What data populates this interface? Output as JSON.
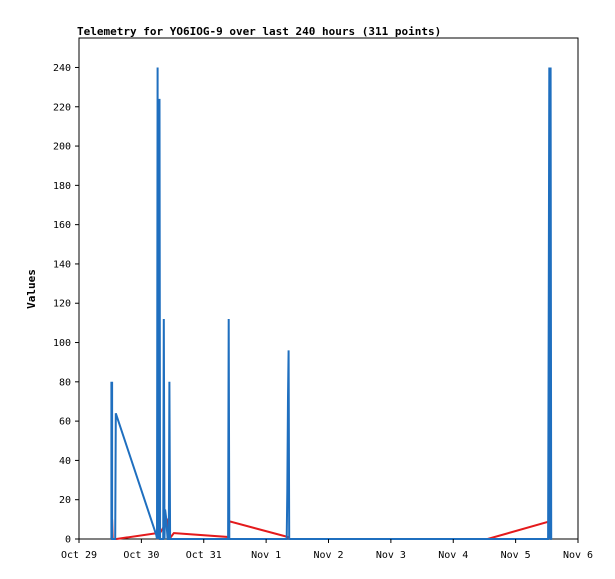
{
  "chart_data": {
    "type": "line",
    "title": "Telemetry for YO6IOG-9 over last 240 hours (311 points)",
    "xlabel": "",
    "ylabel": "Values",
    "ylim": [
      0,
      255
    ],
    "yticks": [
      0,
      20,
      40,
      60,
      80,
      100,
      120,
      140,
      160,
      180,
      200,
      220,
      240
    ],
    "xlim": [
      0,
      8
    ],
    "xticks": [
      {
        "label": "Oct 29",
        "value": 0
      },
      {
        "label": "Oct 30",
        "value": 1
      },
      {
        "label": "Oct 31",
        "value": 2
      },
      {
        "label": "Nov 1",
        "value": 3
      },
      {
        "label": "Nov 2",
        "value": 4
      },
      {
        "label": "Nov 3",
        "value": 5
      },
      {
        "label": "Nov 4",
        "value": 6
      },
      {
        "label": "Nov 5",
        "value": 7
      },
      {
        "label": "Nov 6",
        "value": 8
      }
    ],
    "grid": false,
    "series": [
      {
        "color": "#e41a1c",
        "x": [
          0.52,
          0.53,
          0.54,
          0.56,
          0.6,
          1.25,
          1.26,
          1.27,
          1.28,
          1.43,
          1.44,
          1.45,
          1.52,
          1.53,
          2.4,
          2.41,
          3.35,
          3.37,
          4.0,
          5.0,
          6.0,
          6.55,
          7.55,
          7.56
        ],
        "y": [
          0,
          10,
          0,
          0,
          0,
          3,
          0,
          3,
          2,
          10,
          0,
          0,
          3,
          3,
          1,
          9,
          1,
          0,
          0,
          0,
          0,
          0,
          9,
          0
        ]
      },
      {
        "color": "#1f6fbf",
        "x": [
          0.52,
          0.52,
          0.53,
          0.53,
          0.53,
          0.54,
          0.54,
          0.58,
          0.59,
          1.24,
          1.25,
          1.26,
          1.26,
          1.27,
          1.28,
          1.29,
          1.3,
          1.31,
          1.32,
          1.33,
          1.34,
          1.35,
          1.36,
          1.37,
          1.38,
          1.4,
          1.41,
          1.42,
          1.43,
          1.44,
          1.45,
          1.46,
          1.47,
          1.48,
          1.5,
          1.51,
          1.52,
          2.39,
          2.4,
          2.41,
          2.42,
          3.33,
          3.34,
          3.35,
          3.36,
          3.37,
          4.0,
          5.0,
          6.0,
          7.0,
          7.52,
          7.53,
          7.54,
          7.55,
          7.56,
          7.57,
          7.58
        ],
        "y": [
          0,
          80,
          0,
          80,
          0,
          0,
          0,
          0,
          64,
          2,
          0,
          240,
          0,
          176,
          0,
          224,
          0,
          0,
          0,
          0,
          0,
          0,
          112,
          0,
          15,
          10,
          5,
          0,
          0,
          0,
          80,
          0,
          0,
          0,
          0,
          0,
          0,
          0,
          112,
          0,
          0,
          0,
          24,
          72,
          96,
          0,
          0,
          0,
          0,
          0,
          0,
          112,
          240,
          0,
          240,
          0,
          0
        ]
      }
    ]
  }
}
